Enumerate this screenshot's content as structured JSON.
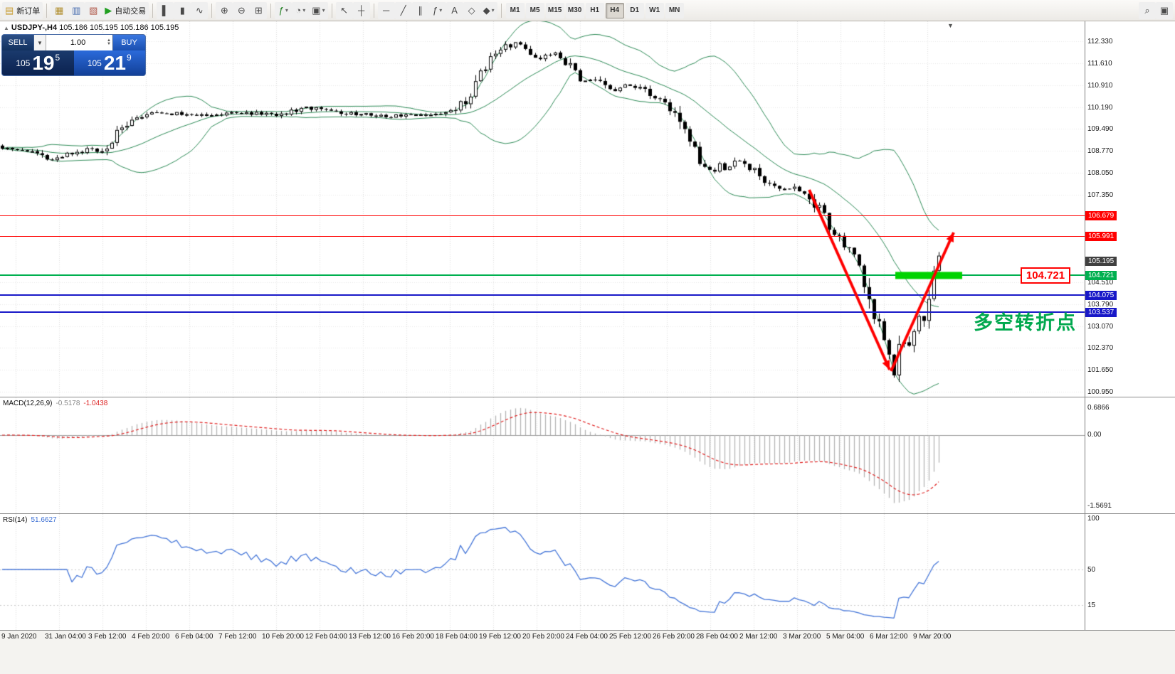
{
  "toolbar": {
    "groups": [
      {
        "name": "order",
        "items": [
          {
            "name": "new-order-button",
            "glyph": "▤",
            "glyph_color": "#c79a2e",
            "label": "新订单"
          }
        ]
      },
      {
        "name": "panels",
        "items": [
          {
            "name": "market-watch-icon",
            "glyph": "▦",
            "glyph_color": "#b08d2c"
          },
          {
            "name": "data-window-icon",
            "glyph": "▥",
            "glyph_color": "#4a6fb0"
          },
          {
            "name": "navigator-icon",
            "glyph": "▧",
            "glyph_color": "#b0584a"
          },
          {
            "name": "autotrading-button",
            "glyph": "▶",
            "glyph_color": "#22a022",
            "label": "自动交易"
          }
        ]
      },
      {
        "name": "chart-type",
        "items": [
          {
            "name": "bar-chart-button",
            "glyph": "▌"
          },
          {
            "name": "candlestick-chart-button",
            "glyph": "▮"
          },
          {
            "name": "line-chart-button",
            "glyph": "∿"
          }
        ]
      },
      {
        "name": "zoom",
        "items": [
          {
            "name": "zoom-in-button",
            "glyph": "⊕"
          },
          {
            "name": "zoom-out-button",
            "glyph": "⊖"
          },
          {
            "name": "tile-windows-button",
            "glyph": "⊞"
          }
        ]
      },
      {
        "name": "chart-tools",
        "items": [
          {
            "name": "indicators-button",
            "glyph": "ƒ",
            "glyph_color": "#208020",
            "dropdown": true
          },
          {
            "name": "periods-button",
            "glyph": "◔",
            "dropdown": true
          },
          {
            "name": "templates-button",
            "glyph": "▣",
            "dropdown": true
          }
        ]
      },
      {
        "name": "pointer",
        "items": [
          {
            "name": "cursor-button",
            "glyph": "↖"
          },
          {
            "name": "crosshair-button",
            "glyph": "┼"
          }
        ]
      },
      {
        "name": "objects",
        "items": [
          {
            "name": "horizontal-line-button",
            "glyph": "─"
          },
          {
            "name": "trendline-button",
            "glyph": "╱"
          },
          {
            "name": "channel-button",
            "glyph": "∥"
          },
          {
            "name": "fibonacci-button",
            "glyph": "ƒ",
            "dropdown": true
          },
          {
            "name": "text-button",
            "glyph": "A"
          },
          {
            "name": "arrow-label-button",
            "glyph": "◇"
          },
          {
            "name": "shapes-button",
            "glyph": "◆",
            "dropdown": true
          }
        ]
      }
    ],
    "timeframes": [
      "M1",
      "M5",
      "M15",
      "M30",
      "H1",
      "H4",
      "D1",
      "W1",
      "MN"
    ],
    "active_timeframe": "H4",
    "right_items": [
      {
        "name": "search-button",
        "glyph": "⌕"
      },
      {
        "name": "new-chart-window-button",
        "glyph": "▣"
      }
    ]
  },
  "chart_header": {
    "symbol": "USDJPY-,H4",
    "ohlc": "105.186 105.195 105.186 105.195"
  },
  "trade_panel": {
    "sell_label": "SELL",
    "buy_label": "BUY",
    "volume": "1.00",
    "sell_price_prefix": "105",
    "sell_price_big": "19",
    "sell_price_sup": "5",
    "buy_price_prefix": "105",
    "buy_price_big": "21",
    "buy_price_sup": "9"
  },
  "annotations": {
    "turning_point": "多空转折点",
    "price_box": "104.721"
  },
  "macd": {
    "label": "MACD(12,26,9)",
    "value1": "-0.5178",
    "value2": "-1.0438",
    "scale_top": "0.6866",
    "scale_zero": "0.00",
    "scale_bottom": "-1.5691"
  },
  "rsi": {
    "label": "RSI(14)",
    "value": "51.6627",
    "scale_top": "100",
    "scale_mid": "50",
    "scale_low": "15"
  },
  "chart_data": {
    "type": "candlestick",
    "symbol": "USDJPY",
    "timeframe": "H4",
    "ylim": [
      100.78,
      112.98
    ],
    "candle_spacing": 7,
    "noise_seed": 7,
    "price_anchors": [
      [
        0,
        108.9
      ],
      [
        40,
        108.8
      ],
      [
        70,
        108.5
      ],
      [
        90,
        108.62
      ],
      [
        120,
        108.8
      ],
      [
        145,
        108.7
      ],
      [
        160,
        109.2
      ],
      [
        175,
        109.6
      ],
      [
        195,
        109.9
      ],
      [
        230,
        110.0
      ],
      [
        270,
        109.9
      ],
      [
        310,
        109.95
      ],
      [
        350,
        110.0
      ],
      [
        390,
        109.95
      ],
      [
        430,
        110.15
      ],
      [
        455,
        110.2
      ],
      [
        480,
        110.0
      ],
      [
        520,
        109.95
      ],
      [
        560,
        109.9
      ],
      [
        600,
        109.95
      ],
      [
        630,
        110.0
      ],
      [
        650,
        110.3
      ],
      [
        665,
        110.9
      ],
      [
        680,
        111.5
      ],
      [
        695,
        111.9
      ],
      [
        710,
        112.15
      ],
      [
        725,
        112.25
      ],
      [
        740,
        112.0
      ],
      [
        755,
        111.8
      ],
      [
        770,
        111.9
      ],
      [
        785,
        111.95
      ],
      [
        800,
        111.5
      ],
      [
        815,
        111.05
      ],
      [
        830,
        111.1
      ],
      [
        845,
        110.9
      ],
      [
        860,
        110.7
      ],
      [
        875,
        110.85
      ],
      [
        890,
        110.9
      ],
      [
        905,
        110.7
      ],
      [
        920,
        110.5
      ],
      [
        935,
        110.3
      ],
      [
        950,
        110.0
      ],
      [
        960,
        109.5
      ],
      [
        970,
        109.0
      ],
      [
        980,
        108.6
      ],
      [
        990,
        108.3
      ],
      [
        1000,
        108.1
      ],
      [
        1010,
        108.35
      ],
      [
        1020,
        108.15
      ],
      [
        1030,
        108.4
      ],
      [
        1040,
        108.45
      ],
      [
        1050,
        108.25
      ],
      [
        1060,
        108.1
      ],
      [
        1070,
        107.9
      ],
      [
        1080,
        107.75
      ],
      [
        1090,
        107.6
      ],
      [
        1100,
        107.55
      ],
      [
        1110,
        107.6
      ],
      [
        1120,
        107.5
      ],
      [
        1130,
        107.45
      ],
      [
        1140,
        107.2
      ],
      [
        1150,
        106.9
      ],
      [
        1160,
        106.55
      ],
      [
        1170,
        106.2
      ],
      [
        1180,
        105.9
      ],
      [
        1190,
        105.6
      ],
      [
        1198,
        105.35
      ],
      [
        1206,
        105.1
      ],
      [
        1214,
        104.6
      ],
      [
        1222,
        103.9
      ],
      [
        1230,
        103.55
      ],
      [
        1238,
        102.6
      ],
      [
        1244,
        102.45
      ],
      [
        1250,
        102.35
      ],
      [
        1256,
        101.55
      ],
      [
        1262,
        102.3
      ],
      [
        1270,
        102.45
      ],
      [
        1278,
        102.65
      ],
      [
        1286,
        103.2
      ],
      [
        1294,
        103.5
      ],
      [
        1300,
        103.45
      ],
      [
        1306,
        104.3
      ],
      [
        1312,
        104.9
      ],
      [
        1318,
        105.5
      ],
      [
        1322,
        105.2
      ]
    ],
    "indicators": [
      {
        "type": "bollinger",
        "period": 20,
        "deviation": 2,
        "color": "#2e8b57"
      },
      {
        "type": "macd",
        "fast": 12,
        "slow": 26,
        "signal": 9,
        "histogram_color": "#b4b4b4",
        "signal_color": "#e02020"
      },
      {
        "type": "rsi",
        "period": 14,
        "color": "#4576d8"
      }
    ],
    "levels": [
      {
        "price": 106.679,
        "label": "106.679",
        "color": "#ff0000",
        "thickness": 1
      },
      {
        "price": 105.991,
        "label": "105.991",
        "color": "#ff0000",
        "thickness": 1
      },
      {
        "price": 105.195,
        "label": "105.195",
        "color": "#404040",
        "thickness": 0,
        "current": true
      },
      {
        "price": 104.721,
        "label": "104.721",
        "color": "#00b050",
        "thickness": 2
      },
      {
        "price": 104.075,
        "label": "104.075",
        "color": "#1818c8",
        "thickness": 2
      },
      {
        "price": 103.537,
        "label": "103.537",
        "color": "#1818c8",
        "thickness": 2
      }
    ],
    "plain_axis_labels": [
      "112.330",
      "111.610",
      "110.910",
      "110.190",
      "109.490",
      "108.770",
      "108.050",
      "107.350",
      "104.510",
      "103.790",
      "103.070",
      "102.370",
      "101.650",
      "100.950"
    ],
    "trend_arrows": [
      {
        "from": [
          1137,
          237
        ],
        "to": [
          1250,
          490
        ]
      },
      {
        "from": [
          1252,
          492
        ],
        "to": [
          1340,
          297
        ]
      }
    ],
    "arrow_color": "#ff0000",
    "highlight": {
      "x": 1258,
      "width": 94,
      "price": 104.721,
      "height": 10,
      "color": "#00d300"
    },
    "time_labels": [
      "9 Jan 2020",
      "31 Jan 04:00",
      "3 Feb 12:00",
      "4 Feb 20:00",
      "6 Feb 04:00",
      "7 Feb 12:00",
      "10 Feb 20:00",
      "12 Feb 04:00",
      "13 Feb 12:00",
      "16 Feb 20:00",
      "18 Feb 04:00",
      "19 Feb 12:00",
      "20 Feb 20:00",
      "24 Feb 04:00",
      "25 Feb 12:00",
      "26 Feb 20:00",
      "28 Feb 04:00",
      "2 Mar 12:00",
      "3 Mar 20:00",
      "5 Mar 04:00",
      "6 Mar 12:00",
      "9 Mar 20:00"
    ]
  }
}
